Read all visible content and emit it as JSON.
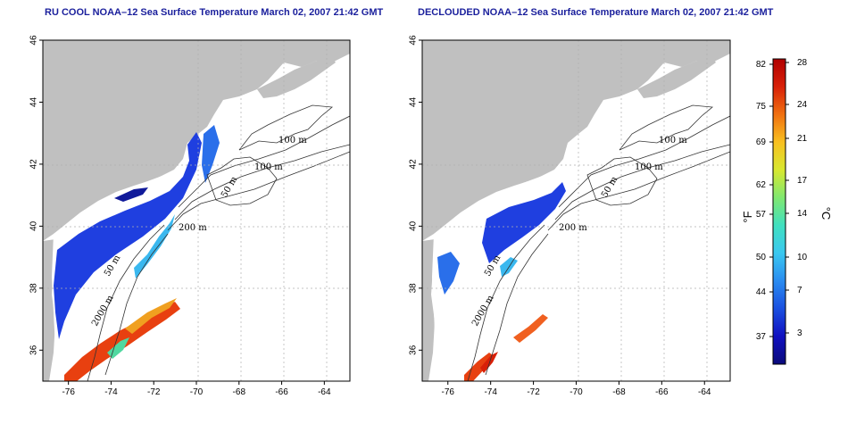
{
  "panels": [
    {
      "title": "RU COOL NOAA–12 Sea Surface Temperature March 02, 2007 21:42 GMT"
    },
    {
      "title": "DECLOUDED NOAA–12 Sea Surface Temperature March 02, 2007 21:42 GMT"
    }
  ],
  "axes": {
    "x_ticks": [
      "-76",
      "-74",
      "-72",
      "-70",
      "-68",
      "-66",
      "-64"
    ],
    "y_ticks": [
      "36",
      "38",
      "40",
      "42",
      "44",
      "46"
    ],
    "x_range": [
      -77.2,
      -62.8
    ],
    "y_range": [
      35,
      46
    ]
  },
  "contour_labels": [
    "100 m",
    "100 m",
    "50 m",
    "200 m",
    "50 m",
    "2000 m"
  ],
  "colorbar": {
    "fahrenheit_unit": "°F",
    "celsius_unit": "°C",
    "fahrenheit_ticks": [
      "82",
      "75",
      "69",
      "62",
      "57",
      "50",
      "44",
      "37"
    ],
    "celsius_ticks": [
      "28",
      "24",
      "21",
      "17",
      "14",
      "10",
      "7",
      "3"
    ],
    "colors": [
      "#0a0a7a",
      "#1010c0",
      "#1a4fe0",
      "#2a8cf0",
      "#3ac8f0",
      "#40e0c0",
      "#80e870",
      "#d8e830",
      "#f8c020",
      "#f07010",
      "#d82008",
      "#b00000"
    ]
  },
  "colors": {
    "land": "#c0c0c0",
    "title": "#1a1f9c",
    "grid": "#b0b0b0"
  }
}
